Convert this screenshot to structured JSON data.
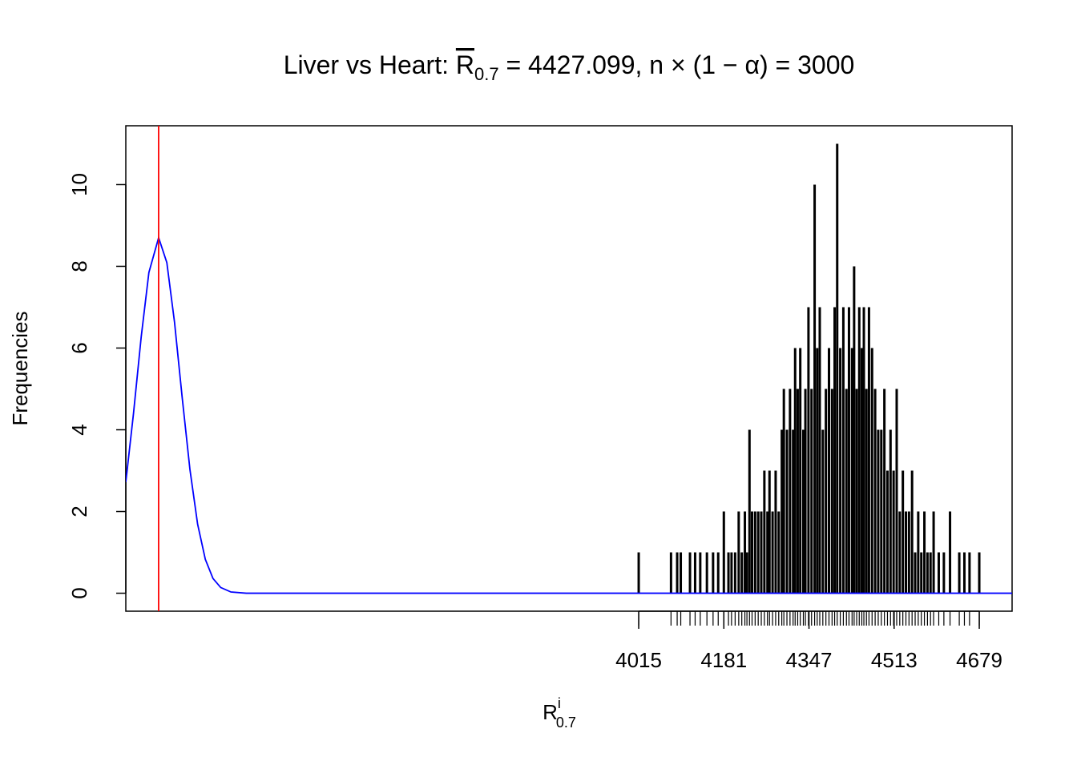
{
  "chart_data": {
    "type": "frequency",
    "title": {
      "prefix": "Liver vs Heart: ",
      "symbol": "R",
      "subscript": "0.7",
      "suffix": " = 4427.099, n × (1 − α) = 3000"
    },
    "x_label": {
      "symbol": "R",
      "superscript": "i",
      "subscript": "0.7"
    },
    "y_label": "Frequencies",
    "xlim": [
      3015,
      4743
    ],
    "ylim": [
      -0.44,
      11.44
    ],
    "xticks": [
      4015,
      4181,
      4347,
      4513,
      4679
    ],
    "yticks": [
      0,
      2,
      4,
      6,
      8,
      10
    ],
    "series": [
      {
        "color": "#000000",
        "x": [
          4015,
          4078,
          4090,
          4097,
          4115,
          4125,
          4135,
          4148,
          4160,
          4170,
          4181,
          4190,
          4196,
          4203,
          4210,
          4216,
          4222,
          4226,
          4231,
          4236,
          4242,
          4248,
          4254,
          4260,
          4266,
          4270,
          4276,
          4282,
          4288,
          4294,
          4298,
          4304,
          4310,
          4316,
          4320,
          4325,
          4330,
          4336,
          4340,
          4346,
          4352,
          4358,
          4363,
          4368,
          4374,
          4380,
          4386,
          4392,
          4397,
          4402,
          4408,
          4414,
          4420,
          4425,
          4431,
          4435,
          4440,
          4445,
          4450,
          4454,
          4459,
          4464,
          4470,
          4476,
          4482,
          4488,
          4494,
          4500,
          4506,
          4512,
          4518,
          4524,
          4530,
          4536,
          4542,
          4548,
          4554,
          4560,
          4566,
          4572,
          4578,
          4584,
          4590,
          4600,
          4610,
          4622,
          4640,
          4650,
          4660,
          4679
        ],
        "values": [
          1,
          1,
          1,
          1,
          1,
          1,
          1,
          1,
          1,
          1,
          2,
          1,
          1,
          1,
          2,
          1,
          2,
          1,
          4,
          2,
          2,
          2,
          2,
          3,
          2,
          3,
          2,
          3,
          2,
          4,
          5,
          4,
          5,
          4,
          6,
          5,
          6,
          4,
          5,
          7,
          5,
          10,
          6,
          7,
          4,
          5,
          6,
          5,
          7,
          11,
          6,
          7,
          5,
          7,
          6,
          8,
          5,
          7,
          6,
          7,
          5,
          7,
          6,
          5,
          4,
          4,
          5,
          3,
          4,
          3,
          5,
          2,
          3,
          2,
          2,
          3,
          1,
          2,
          1,
          2,
          1,
          1,
          2,
          1,
          1,
          2,
          1,
          1,
          1,
          1
        ]
      }
    ],
    "curve": {
      "color": "#0000ff",
      "x": [
        3015,
        3030,
        3045,
        3060,
        3079,
        3095,
        3110,
        3125,
        3140,
        3155,
        3170,
        3185,
        3200,
        3220,
        3250,
        4743
      ],
      "y": [
        2.72,
        4.4,
        6.27,
        7.85,
        8.7,
        8.09,
        6.63,
        4.78,
        3.03,
        1.69,
        0.83,
        0.36,
        0.14,
        0.03,
        0,
        0
      ]
    },
    "vline": {
      "x": 3079,
      "color": "#ff0000"
    }
  }
}
